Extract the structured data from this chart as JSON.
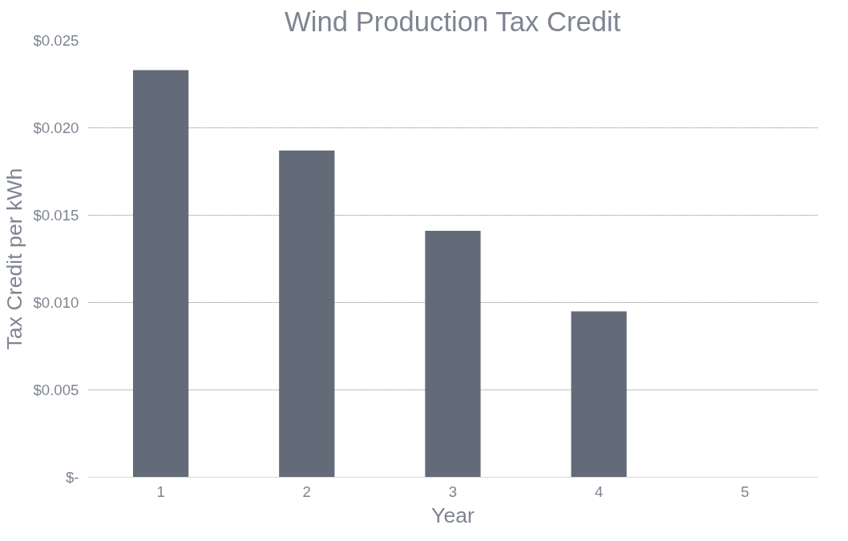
{
  "chart_data": {
    "type": "bar",
    "title": "Wind Production Tax Credit",
    "xlabel": "Year",
    "ylabel": "Tax Credit per kWh",
    "categories": [
      "1",
      "2",
      "3",
      "4",
      "5"
    ],
    "values": [
      0.0233,
      0.0187,
      0.0141,
      0.0095,
      0
    ],
    "color": "#636a78",
    "ylim": [
      0,
      0.025
    ],
    "yticks": [
      {
        "value": 0,
        "label": "$-"
      },
      {
        "value": 0.005,
        "label": "$0.005"
      },
      {
        "value": 0.01,
        "label": "$0.010"
      },
      {
        "value": 0.015,
        "label": "$0.015"
      },
      {
        "value": 0.02,
        "label": "$0.020"
      },
      {
        "value": 0.025,
        "label": "$0.025"
      }
    ],
    "grid": "y"
  }
}
